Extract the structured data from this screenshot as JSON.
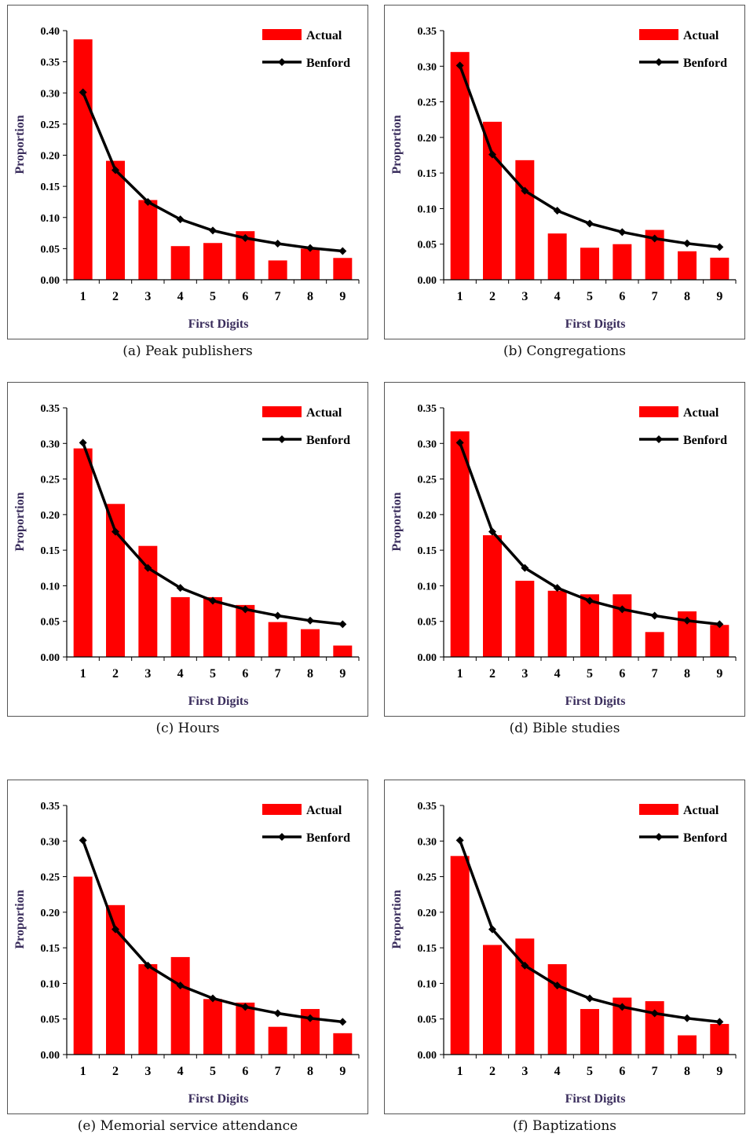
{
  "colors": {
    "actual": "#ff0000",
    "benford": "#000000",
    "axis_title": "#3a2d5c"
  },
  "chart_data": [
    {
      "type": "bar",
      "caption": "(a)  Peak publishers",
      "categories": [
        "1",
        "2",
        "3",
        "4",
        "5",
        "6",
        "7",
        "8",
        "9"
      ],
      "xlabel": "First Digits",
      "ylabel": "Proportion",
      "ylim": [
        0,
        0.4
      ],
      "yticks": [
        "0.00",
        "0.05",
        "0.10",
        "0.15",
        "0.20",
        "0.25",
        "0.30",
        "0.35",
        "0.40"
      ],
      "legend": "top-right",
      "series": [
        {
          "name": "Actual",
          "kind": "bar",
          "values": [
            0.386,
            0.191,
            0.128,
            0.054,
            0.059,
            0.078,
            0.031,
            0.05,
            0.035
          ]
        },
        {
          "name": "Benford",
          "kind": "line",
          "values": [
            0.301,
            0.176,
            0.125,
            0.097,
            0.079,
            0.067,
            0.058,
            0.051,
            0.046
          ]
        }
      ]
    },
    {
      "type": "bar",
      "caption": "(b)  Congregations",
      "categories": [
        "1",
        "2",
        "3",
        "4",
        "5",
        "6",
        "7",
        "8",
        "9"
      ],
      "xlabel": "First Digits",
      "ylabel": "Proportion",
      "ylim": [
        0,
        0.35
      ],
      "yticks": [
        "0.00",
        "0.05",
        "0.10",
        "0.15",
        "0.20",
        "0.25",
        "0.30",
        "0.35"
      ],
      "legend": "top-right",
      "series": [
        {
          "name": "Actual",
          "kind": "bar",
          "values": [
            0.32,
            0.222,
            0.168,
            0.065,
            0.045,
            0.05,
            0.07,
            0.04,
            0.031
          ]
        },
        {
          "name": "Benford",
          "kind": "line",
          "values": [
            0.301,
            0.176,
            0.125,
            0.097,
            0.079,
            0.067,
            0.058,
            0.051,
            0.046
          ]
        }
      ]
    },
    {
      "type": "bar",
      "caption": "(c)  Hours",
      "categories": [
        "1",
        "2",
        "3",
        "4",
        "5",
        "6",
        "7",
        "8",
        "9"
      ],
      "xlabel": "First Digits",
      "ylabel": "Proportion",
      "ylim": [
        0,
        0.35
      ],
      "yticks": [
        "0.00",
        "0.05",
        "0.10",
        "0.15",
        "0.20",
        "0.25",
        "0.30",
        "0.35"
      ],
      "legend": "top-right",
      "series": [
        {
          "name": "Actual",
          "kind": "bar",
          "values": [
            0.293,
            0.215,
            0.156,
            0.084,
            0.084,
            0.073,
            0.049,
            0.039,
            0.016
          ]
        },
        {
          "name": "Benford",
          "kind": "line",
          "values": [
            0.301,
            0.176,
            0.125,
            0.097,
            0.079,
            0.067,
            0.058,
            0.051,
            0.046
          ]
        }
      ]
    },
    {
      "type": "bar",
      "caption": "(d)  Bible studies",
      "categories": [
        "1",
        "2",
        "3",
        "4",
        "5",
        "6",
        "7",
        "8",
        "9"
      ],
      "xlabel": "First Digits",
      "ylabel": "Proportion",
      "ylim": [
        0,
        0.35
      ],
      "yticks": [
        "0.00",
        "0.05",
        "0.10",
        "0.15",
        "0.20",
        "0.25",
        "0.30",
        "0.35"
      ],
      "legend": "top-right",
      "series": [
        {
          "name": "Actual",
          "kind": "bar",
          "values": [
            0.317,
            0.171,
            0.107,
            0.093,
            0.088,
            0.088,
            0.035,
            0.064,
            0.045
          ]
        },
        {
          "name": "Benford",
          "kind": "line",
          "values": [
            0.301,
            0.176,
            0.125,
            0.097,
            0.079,
            0.067,
            0.058,
            0.051,
            0.046
          ]
        }
      ]
    },
    {
      "type": "bar",
      "caption": "(e)  Memorial service attendance",
      "categories": [
        "1",
        "2",
        "3",
        "4",
        "5",
        "6",
        "7",
        "8",
        "9"
      ],
      "xlabel": "First Digits",
      "ylabel": "Proportion",
      "ylim": [
        0,
        0.35
      ],
      "yticks": [
        "0.00",
        "0.05",
        "0.10",
        "0.15",
        "0.20",
        "0.25",
        "0.30",
        "0.35"
      ],
      "legend": "top-right",
      "series": [
        {
          "name": "Actual",
          "kind": "bar",
          "values": [
            0.25,
            0.21,
            0.127,
            0.137,
            0.078,
            0.073,
            0.039,
            0.064,
            0.03
          ]
        },
        {
          "name": "Benford",
          "kind": "line",
          "values": [
            0.301,
            0.176,
            0.125,
            0.097,
            0.079,
            0.067,
            0.058,
            0.051,
            0.046
          ]
        }
      ]
    },
    {
      "type": "bar",
      "caption": "(f)  Baptizations",
      "categories": [
        "1",
        "2",
        "3",
        "4",
        "5",
        "6",
        "7",
        "8",
        "9"
      ],
      "xlabel": "First Digits",
      "ylabel": "Proportion",
      "ylim": [
        0,
        0.35
      ],
      "yticks": [
        "0.00",
        "0.05",
        "0.10",
        "0.15",
        "0.20",
        "0.25",
        "0.30",
        "0.35"
      ],
      "legend": "top-right",
      "series": [
        {
          "name": "Actual",
          "kind": "bar",
          "values": [
            0.279,
            0.154,
            0.163,
            0.127,
            0.064,
            0.08,
            0.075,
            0.027,
            0.043
          ]
        },
        {
          "name": "Benford",
          "kind": "line",
          "values": [
            0.301,
            0.176,
            0.125,
            0.097,
            0.079,
            0.067,
            0.058,
            0.051,
            0.046
          ]
        }
      ]
    }
  ]
}
